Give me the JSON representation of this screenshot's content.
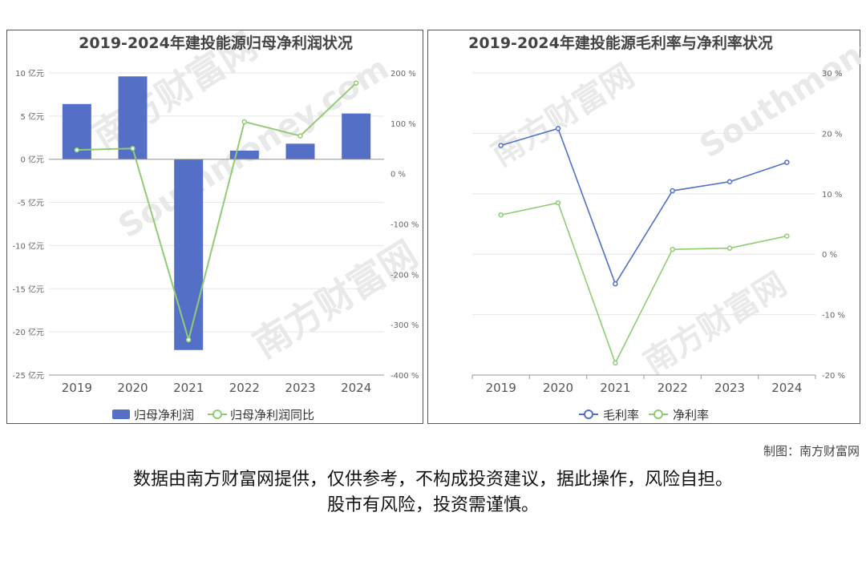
{
  "source_label": "制图：南方财富网",
  "disclaimer": {
    "line1": "数据由南方财富网提供，仅供参考，不构成投资建议，据此操作，风险自担。",
    "line2": "股市有风险，投资需谨慎。"
  },
  "watermark": {
    "cn": "南方财富网",
    "en": "Southmoney.com"
  },
  "colors": {
    "bar": "#5470c6",
    "line_green": "#91cc75",
    "line_blue": "#5470c6"
  },
  "chart_data": [
    {
      "type": "bar",
      "title": "2019-2024年建投能源归母净利润状况",
      "categories": [
        "2019",
        "2020",
        "2021",
        "2022",
        "2023",
        "2024"
      ],
      "y_left": {
        "ticks": [
          "10 亿元",
          "5 亿元",
          "0 亿元",
          "-5 亿元",
          "-10 亿元",
          "-15 亿元",
          "-20 亿元",
          "-25 亿元"
        ],
        "min": -25,
        "max": 10
      },
      "y_right": {
        "ticks": [
          "200 %",
          "100 %",
          "0 %",
          "-100 %",
          "-200 %",
          "-300 %",
          "-400 %"
        ],
        "min": -400,
        "max": 200
      },
      "series": [
        {
          "name": "归母净利润",
          "type": "bar",
          "axis": "left",
          "values": [
            6.4,
            9.6,
            -22.1,
            1.0,
            1.8,
            5.3
          ]
        },
        {
          "name": "归母净利润同比",
          "type": "line",
          "axis": "right",
          "values": [
            47,
            50,
            -330,
            103,
            75,
            180
          ]
        }
      ]
    },
    {
      "type": "line",
      "title": "2019-2024年建投能源毛利率与净利率状况",
      "categories": [
        "2019",
        "2020",
        "2021",
        "2022",
        "2023",
        "2024"
      ],
      "y_right": {
        "ticks": [
          "30 %",
          "20 %",
          "10 %",
          "0 %",
          "-10 %",
          "-20 %"
        ],
        "min": -20,
        "max": 30
      },
      "series": [
        {
          "name": "毛利率",
          "values": [
            18,
            20.8,
            -4.9,
            10.5,
            12,
            15.2
          ]
        },
        {
          "name": "净利率",
          "values": [
            6.5,
            8.5,
            -18,
            0.8,
            1,
            3
          ]
        }
      ]
    }
  ]
}
